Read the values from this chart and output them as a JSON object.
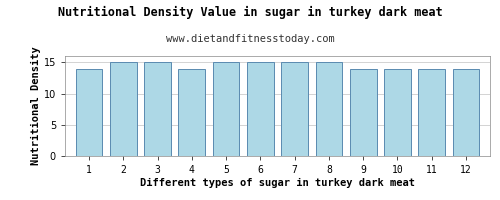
{
  "title": "Nutritional Density Value in sugar in turkey dark meat",
  "subtitle": "www.dietandfitnesstoday.com",
  "xlabel": "Different types of sugar in turkey dark meat",
  "ylabel": "Nutritional Density",
  "categories": [
    1,
    2,
    3,
    4,
    5,
    6,
    7,
    8,
    9,
    10,
    11,
    12
  ],
  "values": [
    14.0,
    15.0,
    15.0,
    14.0,
    15.0,
    15.0,
    15.0,
    15.0,
    14.0,
    14.0,
    14.0,
    14.0
  ],
  "bar_color": "#add8e6",
  "bar_edge_color": "#5a8ab0",
  "background_color": "#ffffff",
  "ylim": [
    0,
    16
  ],
  "yticks": [
    0,
    5,
    10,
    15
  ],
  "grid_color": "#cccccc",
  "title_fontsize": 8.5,
  "subtitle_fontsize": 7.5,
  "axis_label_fontsize": 7.5,
  "tick_fontsize": 7
}
